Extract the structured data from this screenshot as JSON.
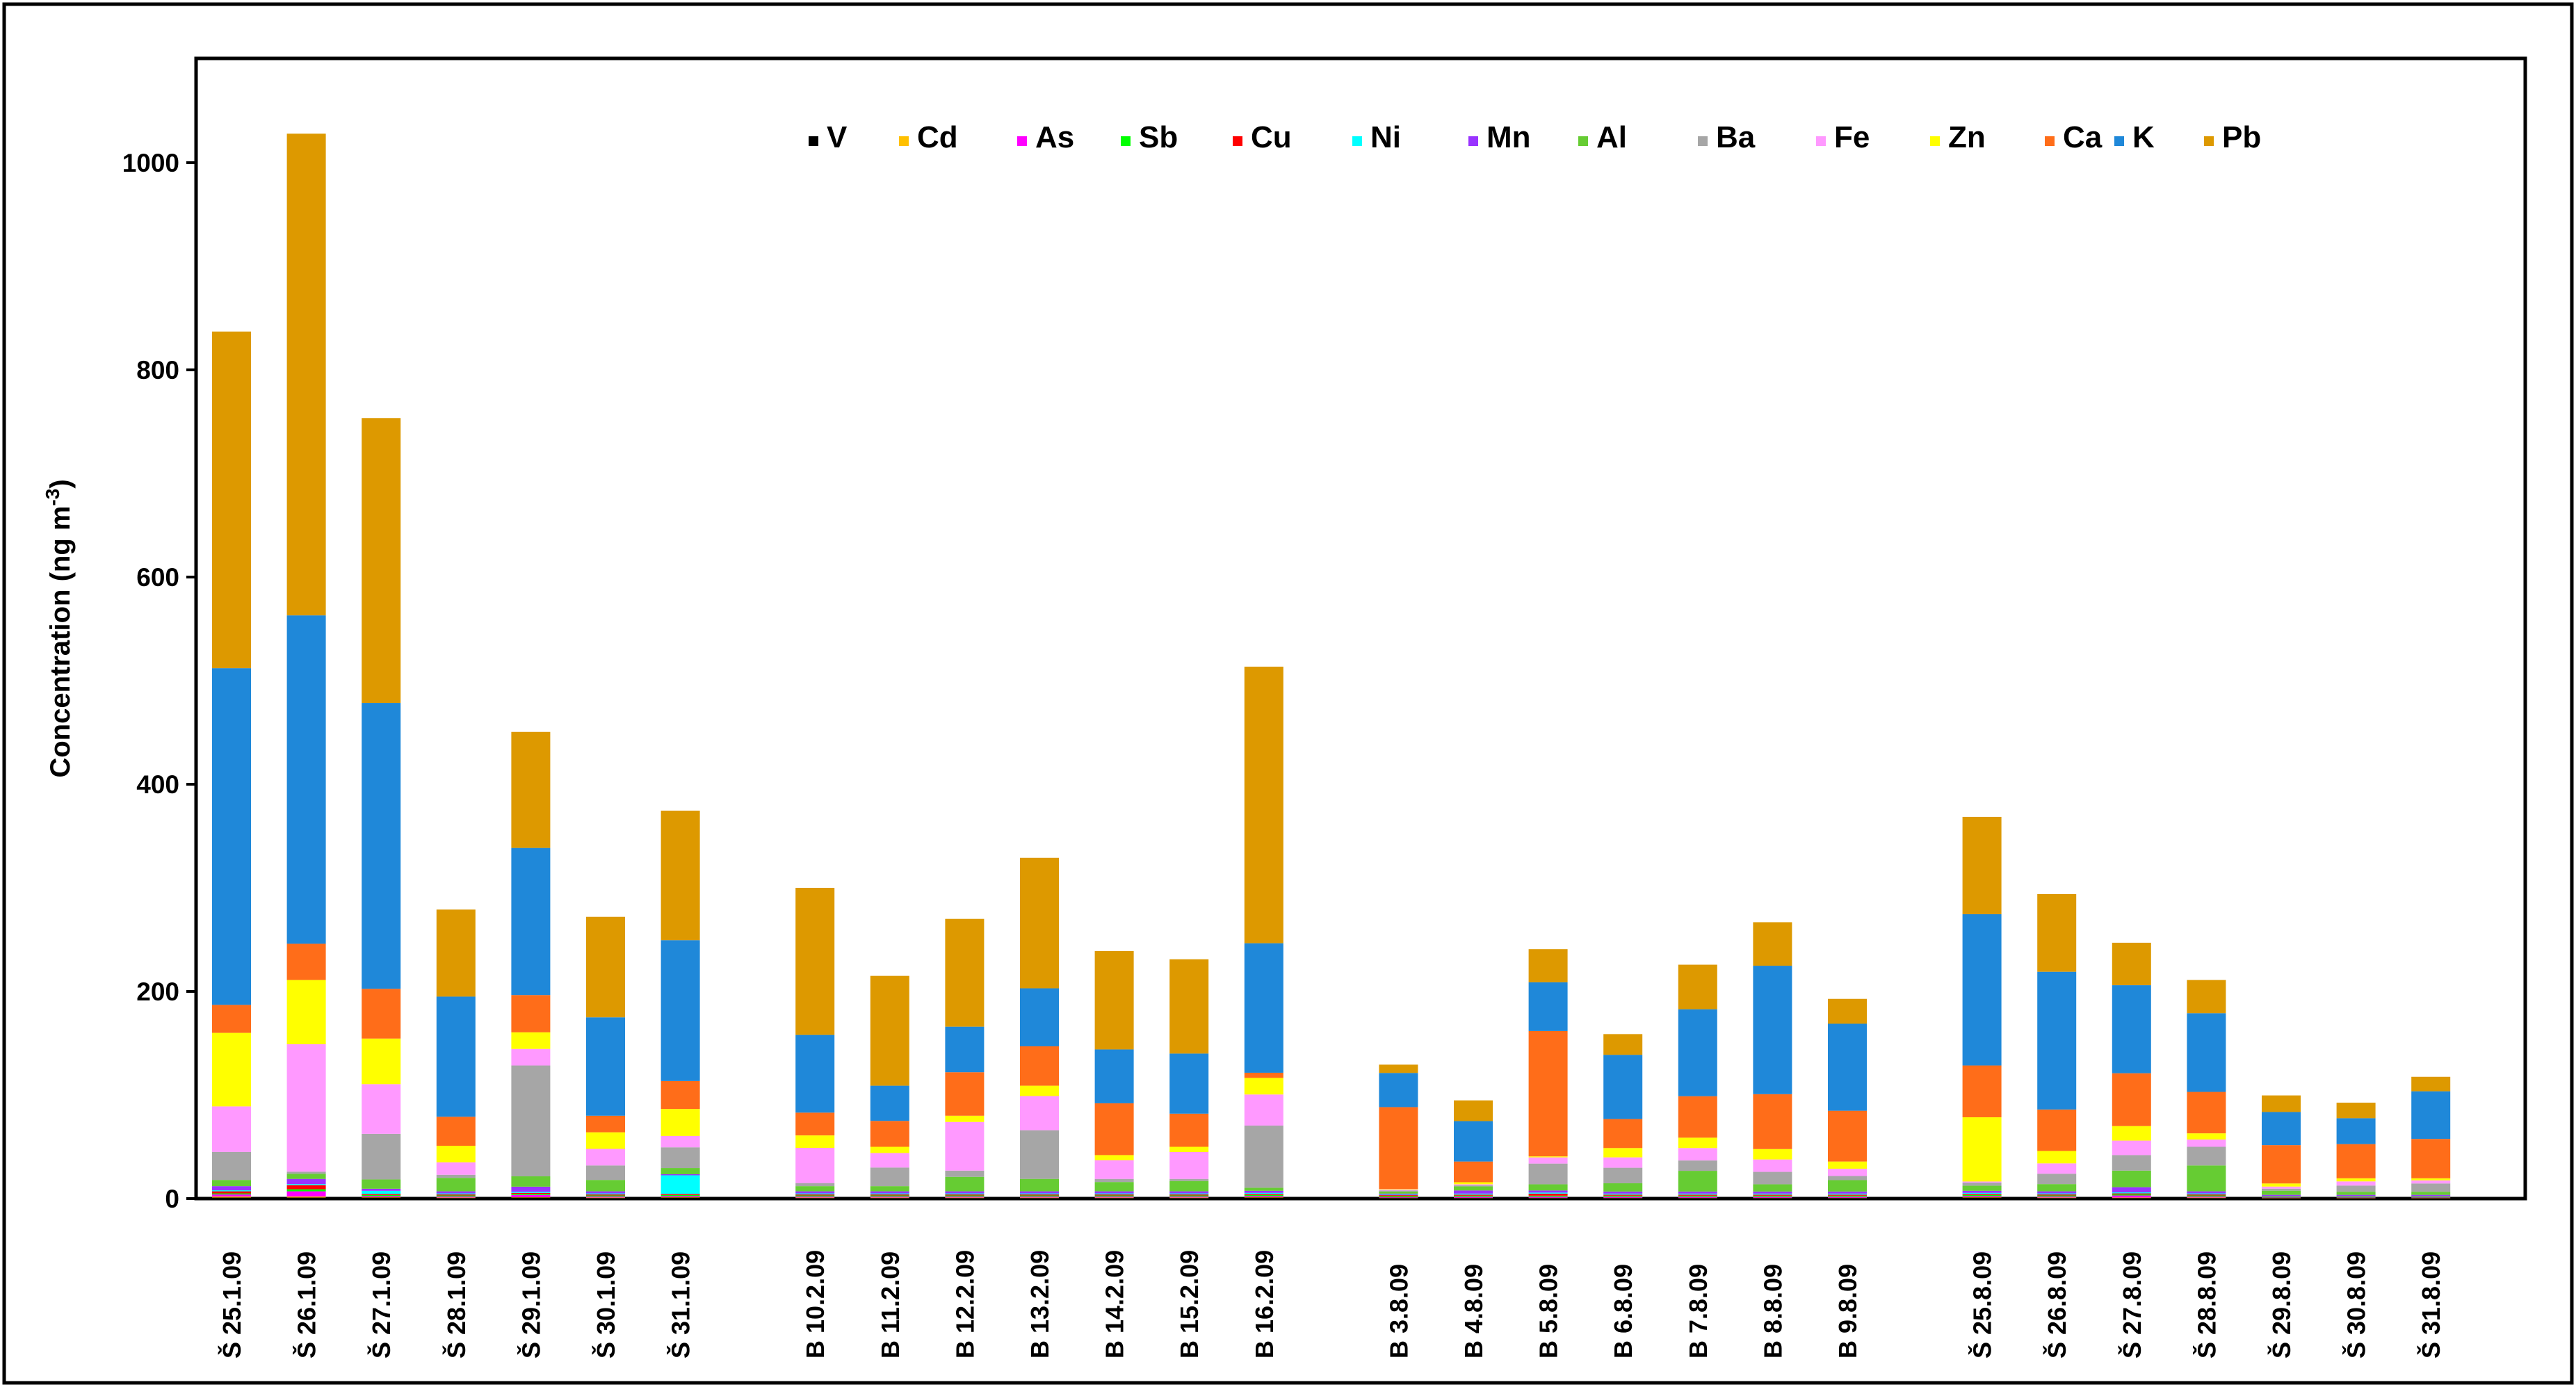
{
  "chart_data": {
    "type": "bar",
    "stacked": true,
    "title": "",
    "xlabel": "",
    "ylabel": "Concentration (ng m-3)",
    "ylabel_parts": {
      "main": "Concentration (ng m",
      "sup": "-3",
      "close": ")"
    },
    "ylim": [
      0,
      1100
    ],
    "yticks": [
      0,
      200,
      400,
      600,
      800,
      1000
    ],
    "grid": false,
    "legend_position": "top",
    "groups": [
      [
        "Š 25.1.09",
        "Š 26.1.09",
        "Š 27.1.09",
        "Š 28.1.09",
        "Š 29.1.09",
        "Š 30.1.09",
        "Š 31.1.09"
      ],
      [
        "B 10.2.09",
        "B 11.2.09",
        "B 12.2.09",
        "B 13.2.09",
        "B 14.2.09",
        "B 15.2.09",
        "B 16.2.09"
      ],
      [
        "B 3.8.09",
        "B 4.8.09",
        "B 5.8.09",
        "B 6.8.09",
        "B 7.8.09",
        "B 8.8.09",
        "B 9.8.09"
      ],
      [
        "Š 25.8.09",
        "Š 26.8.09",
        "Š 27.8.09",
        "Š 28.8.09",
        "Š 29.8.09",
        "Š 30.8.09",
        "Š 31.8.09"
      ]
    ],
    "categories": [
      "Š 25.1.09",
      "Š 26.1.09",
      "Š 27.1.09",
      "Š 28.1.09",
      "Š 29.1.09",
      "Š 30.1.09",
      "Š 31.1.09",
      "B 10.2.09",
      "B 11.2.09",
      "B 12.2.09",
      "B 13.2.09",
      "B 14.2.09",
      "B 15.2.09",
      "B 16.2.09",
      "B 3.8.09",
      "B 4.8.09",
      "B 5.8.09",
      "B 6.8.09",
      "B 7.8.09",
      "B 8.8.09",
      "B 9.8.09",
      "Š 25.8.09",
      "Š 26.8.09",
      "Š 27.8.09",
      "Š 28.8.09",
      "Š 29.8.09",
      "Š 30.8.09",
      "Š 31.8.09"
    ],
    "series": [
      {
        "name": "V",
        "color": "#000000",
        "values": [
          1,
          1,
          1,
          0.5,
          1,
          0.5,
          1,
          0.5,
          0.5,
          0.5,
          0.5,
          0.5,
          0.5,
          1,
          0.5,
          0.5,
          0.5,
          0.5,
          0.5,
          0.5,
          0.5,
          1,
          0.5,
          0.5,
          0.5,
          0.3,
          0.3,
          0.3
        ]
      },
      {
        "name": "Cd",
        "color": "#ffc000",
        "values": [
          1,
          1,
          0.5,
          0.5,
          0.5,
          0.5,
          0.5,
          0.5,
          0.5,
          0.5,
          0.5,
          0.5,
          0.5,
          0.5,
          0.3,
          0.3,
          0.3,
          0.3,
          0.3,
          0.3,
          0.3,
          0.5,
          0.5,
          0.5,
          0.5,
          0.3,
          0.3,
          0.3
        ]
      },
      {
        "name": "As",
        "color": "#ff00ff",
        "values": [
          2,
          5,
          1,
          1,
          2,
          1,
          1,
          1,
          1,
          1,
          1,
          1,
          1,
          1,
          0.5,
          1,
          1,
          1,
          1,
          1,
          1,
          1,
          1,
          2,
          1,
          0.5,
          0.5,
          0.5
        ]
      },
      {
        "name": "Sb",
        "color": "#00ff00",
        "values": [
          1,
          2,
          1,
          1,
          1,
          1,
          1,
          1,
          1,
          1,
          1,
          1,
          1,
          1,
          1,
          1,
          1,
          1,
          1,
          1,
          1,
          1,
          1,
          1,
          1,
          0.5,
          0.5,
          0.5
        ]
      },
      {
        "name": "Cu",
        "color": "#ff0000",
        "values": [
          2,
          4,
          1,
          1,
          1,
          1,
          1,
          1,
          1,
          1,
          1,
          1,
          1,
          1,
          1,
          1,
          2,
          1,
          1,
          1,
          1,
          1,
          1,
          1,
          1,
          0.5,
          0.5,
          0.5
        ]
      },
      {
        "name": "Ni",
        "color": "#00ffff",
        "values": [
          1,
          1,
          3,
          1,
          1,
          1,
          18,
          1,
          1,
          1,
          1,
          1,
          1,
          1,
          0.5,
          1,
          1,
          1,
          1,
          1,
          1,
          1,
          1,
          1,
          1,
          0.5,
          0.5,
          0.5
        ]
      },
      {
        "name": "Mn",
        "color": "#9933ff",
        "values": [
          4,
          5,
          2,
          2,
          5,
          2,
          1,
          2,
          2,
          2,
          2,
          2,
          2,
          2,
          1,
          3,
          2,
          2,
          2,
          2,
          2,
          2,
          2,
          5,
          2,
          1,
          1,
          1
        ]
      },
      {
        "name": "Al",
        "color": "#66cc33",
        "values": [
          6,
          5,
          9,
          13,
          10,
          11,
          6,
          5,
          5,
          14,
          12,
          9,
          10,
          3,
          2,
          4,
          6,
          8,
          20,
          7,
          11,
          5,
          7,
          16,
          25,
          4,
          3,
          3
        ]
      },
      {
        "name": "Ba",
        "color": "#a6a6a6",
        "values": [
          27,
          2,
          44,
          3,
          107,
          14,
          20,
          3,
          18,
          6,
          47,
          3,
          2,
          60,
          1,
          1,
          20,
          15,
          10,
          12,
          4,
          3,
          10,
          15,
          18,
          2,
          6,
          8
        ]
      },
      {
        "name": "Fe",
        "color": "#ff99ff",
        "values": [
          44,
          123,
          48,
          12,
          16,
          16,
          11,
          34,
          14,
          47,
          33,
          18,
          26,
          30,
          1,
          1,
          6,
          10,
          12,
          12,
          7,
          1,
          10,
          14,
          7,
          2,
          4,
          3
        ]
      },
      {
        "name": "Zn",
        "color": "#ffff00",
        "values": [
          71,
          62,
          44,
          16,
          16,
          16,
          26,
          12,
          6,
          6,
          10,
          5,
          5,
          16,
          0.5,
          2,
          1,
          9,
          10,
          10,
          7,
          62,
          12,
          14,
          6,
          3,
          3,
          2
        ]
      },
      {
        "name": "Ca",
        "color": "#ff6d19",
        "values": [
          27,
          35,
          48,
          28,
          36,
          16,
          27,
          22,
          25,
          42,
          38,
          50,
          32,
          5,
          79,
          20,
          121,
          28,
          40,
          53,
          49,
          50,
          40,
          51,
          40,
          37,
          33,
          38
        ]
      },
      {
        "name": "K",
        "color": "#1f88d9",
        "values": [
          325,
          317,
          276,
          116,
          142,
          95,
          136,
          75,
          34,
          44,
          56,
          52,
          58,
          125,
          33,
          39,
          47,
          62,
          84,
          124,
          84,
          146,
          133,
          85,
          76,
          32,
          25,
          46
        ]
      },
      {
        "name": "Pb",
        "color": "#dd9900",
        "values": [
          325,
          465,
          275,
          84,
          112,
          97,
          125,
          142,
          106,
          104,
          126,
          95,
          91,
          267,
          8,
          20,
          32,
          20,
          43,
          42,
          24,
          94,
          75,
          41,
          32,
          16,
          15,
          14
        ]
      }
    ]
  }
}
